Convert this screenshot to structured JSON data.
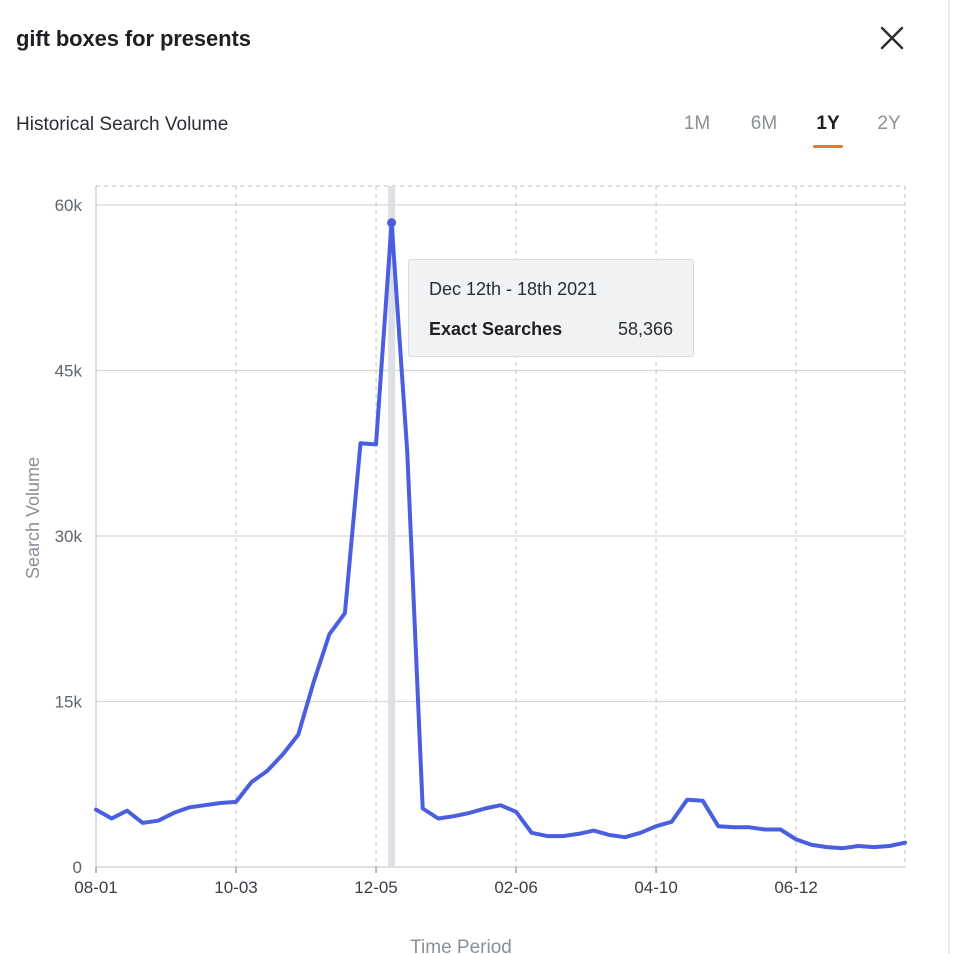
{
  "header": {
    "title": "gift boxes for presents",
    "close_icon": "close-icon"
  },
  "section": {
    "title": "Historical Search Volume"
  },
  "ranges": [
    {
      "label": "1M",
      "active": false
    },
    {
      "label": "6M",
      "active": false
    },
    {
      "label": "1Y",
      "active": true
    },
    {
      "label": "2Y",
      "active": false
    }
  ],
  "colors": {
    "line": "#4a5ee0",
    "accent": "#e07a2f",
    "grid": "#d4d6da"
  },
  "tooltip": {
    "date": "Dec 12th - 18th 2021",
    "label": "Exact Searches",
    "value": "58,366"
  },
  "chart_data": {
    "type": "line",
    "xlabel": "Time Period",
    "ylabel": "Search Volume",
    "ylim": [
      0,
      60000
    ],
    "yticks": [
      0,
      15000,
      30000,
      45000,
      60000
    ],
    "ytick_labels": [
      "0",
      "15k",
      "30k",
      "45k",
      "60k"
    ],
    "xtick_labels": [
      "08-01",
      "10-03",
      "12-05",
      "02-06",
      "04-10",
      "06-12"
    ],
    "grid": true,
    "highlight_index": 19,
    "series": [
      {
        "values": [
          5200,
          4400,
          5100,
          4000,
          4200,
          4900,
          5400,
          5600,
          5800,
          5900,
          7700,
          8700,
          10200,
          12000,
          16800,
          21100,
          23000,
          38400,
          38300,
          58400,
          37700,
          5300,
          4400,
          4600,
          4900,
          5300,
          5600,
          5000,
          3100,
          2800,
          2800,
          3000,
          3300,
          2900,
          2700,
          3100,
          3700,
          4100,
          6100,
          6000,
          3700,
          3600,
          3600,
          3400,
          3400,
          2500,
          2000,
          1800,
          1700,
          1900,
          1800,
          1900,
          2200
        ]
      }
    ]
  }
}
